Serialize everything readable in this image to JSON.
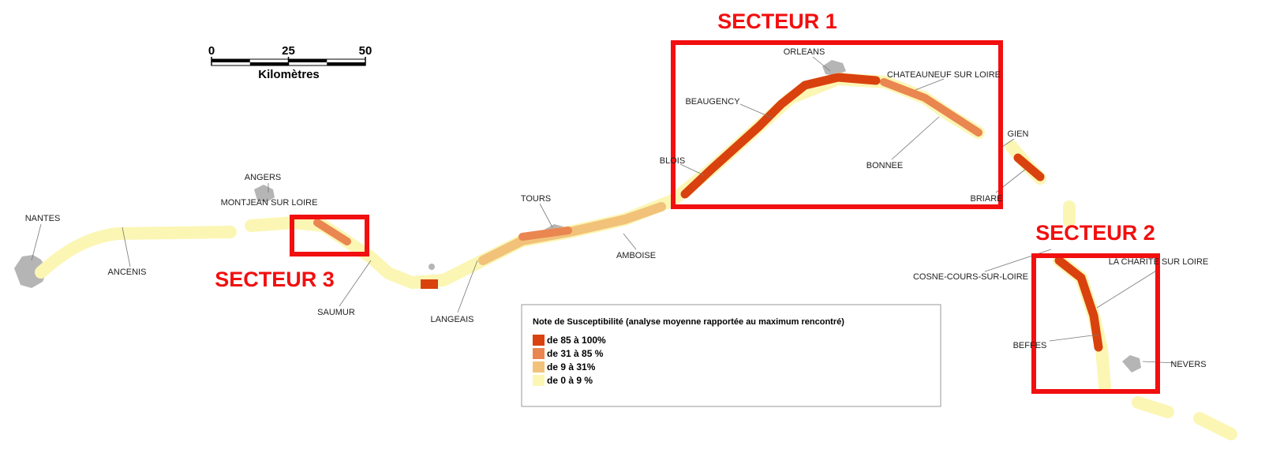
{
  "scale": {
    "ticks": [
      0,
      25,
      50
    ],
    "unit": "Kilomètres"
  },
  "cities": [
    "NANTES",
    "ANCENIS",
    "ANGERS",
    "MONTJEAN SUR LOIRE",
    "SAUMUR",
    "LANGEAIS",
    "TOURS",
    "AMBOISE",
    "BLOIS",
    "BEAUGENCY",
    "ORLEANS",
    "CHATEAUNEUF SUR LOIRE",
    "BONNEE",
    "GIEN",
    "BRIARE",
    "COSNE-COURS-SUR-LOIRE",
    "LA CHARITE SUR LOIRE",
    "BEFFES",
    "NEVERS"
  ],
  "sectors": [
    "SECTEUR 1",
    "SECTEUR 2",
    "SECTEUR 3"
  ],
  "legend": {
    "title": "Note de Susceptibilité (analyse moyenne rapportée au maximum rencontré)",
    "items": [
      {
        "label": "de 85 à 100%",
        "color": "#d9420f"
      },
      {
        "label": "de 31 à 85 %",
        "color": "#ea8650"
      },
      {
        "label": "de 9 à 31%",
        "color": "#f2c27a"
      },
      {
        "label": "de 0 à 9 %",
        "color": "#fbf6b4"
      }
    ]
  }
}
